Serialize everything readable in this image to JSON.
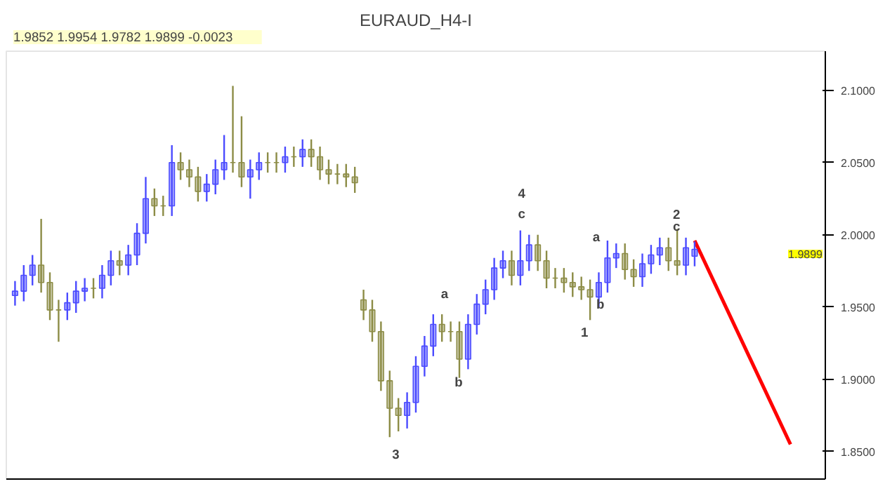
{
  "chart_data": {
    "type": "candlestick",
    "title": "EURAUD_H4-I",
    "categories": [
      null,
      null,
      null,
      null,
      null,
      null,
      null,
      null,
      null,
      null,
      null,
      null,
      null,
      null,
      null,
      null,
      null,
      null,
      null,
      null,
      null,
      null,
      null,
      null,
      null,
      null,
      null,
      null,
      null,
      null,
      null,
      null,
      null,
      null,
      null,
      null,
      null,
      null,
      null,
      null,
      null,
      null,
      null,
      null,
      null,
      null,
      null,
      null,
      null,
      null,
      null,
      null,
      null,
      null,
      null,
      null,
      null,
      null,
      null,
      null,
      null,
      null,
      null,
      null,
      null,
      null,
      null,
      null,
      null,
      null,
      null,
      null,
      null,
      null,
      null,
      null,
      null,
      null,
      null,
      null,
      null,
      null,
      null,
      null,
      null,
      null,
      null,
      null,
      null,
      null
    ],
    "ohlc": [
      [
        1.958,
        1.968,
        1.951,
        1.961
      ],
      [
        1.961,
        1.979,
        1.954,
        1.972
      ],
      [
        1.972,
        1.986,
        1.965,
        1.979
      ],
      [
        1.979,
        2.011,
        1.96,
        1.967
      ],
      [
        1.967,
        1.974,
        1.941,
        1.948
      ],
      [
        1.948,
        1.955,
        1.926,
        1.948
      ],
      [
        1.948,
        1.96,
        1.941,
        1.953
      ],
      [
        1.953,
        1.968,
        1.946,
        1.961
      ],
      [
        1.961,
        1.97,
        1.954,
        1.963
      ],
      [
        1.963,
        1.97,
        1.956,
        1.963
      ],
      [
        1.963,
        1.979,
        1.956,
        1.972
      ],
      [
        1.972,
        1.989,
        1.965,
        1.982
      ],
      [
        1.982,
        1.989,
        1.972,
        1.979
      ],
      [
        1.979,
        1.993,
        1.972,
        1.986
      ],
      [
        1.986,
        2.008,
        1.979,
        2.001
      ],
      [
        2.001,
        2.04,
        1.994,
        2.025
      ],
      [
        2.025,
        2.032,
        2.013,
        2.02
      ],
      [
        2.02,
        2.027,
        2.013,
        2.02
      ],
      [
        2.02,
        2.062,
        2.013,
        2.05
      ],
      [
        2.05,
        2.057,
        2.038,
        2.045
      ],
      [
        2.045,
        2.052,
        2.033,
        2.04
      ],
      [
        2.04,
        2.047,
        2.023,
        2.03
      ],
      [
        2.03,
        2.042,
        2.023,
        2.035
      ],
      [
        2.035,
        2.052,
        2.028,
        2.045
      ],
      [
        2.045,
        2.069,
        2.038,
        2.05
      ],
      [
        2.05,
        2.103,
        2.043,
        2.05
      ],
      [
        2.05,
        2.082,
        2.033,
        2.04
      ],
      [
        2.04,
        2.052,
        2.025,
        2.045
      ],
      [
        2.045,
        2.057,
        2.038,
        2.05
      ],
      [
        2.05,
        2.057,
        2.043,
        2.05
      ],
      [
        2.05,
        2.057,
        2.043,
        2.05
      ],
      [
        2.05,
        2.061,
        2.043,
        2.054
      ],
      [
        2.054,
        2.061,
        2.047,
        2.054
      ],
      [
        2.054,
        2.066,
        2.047,
        2.059
      ],
      [
        2.059,
        2.066,
        2.047,
        2.054
      ],
      [
        2.054,
        2.061,
        2.038,
        2.045
      ],
      [
        2.045,
        2.052,
        2.035,
        2.042
      ],
      [
        2.042,
        2.049,
        2.035,
        2.042
      ],
      [
        2.042,
        2.049,
        2.033,
        2.04
      ],
      [
        2.04,
        2.047,
        2.029,
        2.036
      ],
      [
        1.955,
        1.962,
        1.941,
        1.948
      ],
      [
        1.948,
        1.955,
        1.926,
        1.933
      ],
      [
        1.933,
        1.94,
        1.892,
        1.899
      ],
      [
        1.899,
        1.906,
        1.86,
        1.88
      ],
      [
        1.88,
        1.887,
        1.864,
        1.875
      ],
      [
        1.875,
        1.891,
        1.866,
        1.884
      ],
      [
        1.884,
        1.916,
        1.877,
        1.909
      ],
      [
        1.909,
        1.93,
        1.902,
        1.923
      ],
      [
        1.923,
        1.945,
        1.916,
        1.938
      ],
      [
        1.938,
        1.945,
        1.926,
        1.933
      ],
      [
        1.933,
        1.94,
        1.926,
        1.933
      ],
      [
        1.933,
        1.94,
        1.901,
        1.914
      ],
      [
        1.914,
        1.945,
        1.907,
        1.938
      ],
      [
        1.938,
        1.959,
        1.931,
        1.952
      ],
      [
        1.952,
        1.969,
        1.945,
        1.962
      ],
      [
        1.962,
        1.984,
        1.955,
        1.977
      ],
      [
        1.977,
        1.989,
        1.97,
        1.982
      ],
      [
        1.982,
        1.989,
        1.965,
        1.972
      ],
      [
        1.972,
        2.003,
        1.965,
        1.982
      ],
      [
        1.982,
        2.0,
        1.975,
        1.993
      ],
      [
        1.993,
        2.0,
        1.975,
        1.982
      ],
      [
        1.982,
        1.989,
        1.963,
        1.97
      ],
      [
        1.97,
        1.977,
        1.963,
        1.97
      ],
      [
        1.97,
        1.977,
        1.96,
        1.967
      ],
      [
        1.967,
        1.974,
        1.957,
        1.964
      ],
      [
        1.964,
        1.971,
        1.955,
        1.962
      ],
      [
        1.962,
        1.969,
        1.941,
        1.957
      ],
      [
        1.957,
        1.974,
        1.95,
        1.967
      ],
      [
        1.967,
        1.996,
        1.96,
        1.984
      ],
      [
        1.984,
        1.994,
        1.977,
        1.987
      ],
      [
        1.987,
        1.994,
        1.969,
        1.976
      ],
      [
        1.976,
        1.983,
        1.964,
        1.971
      ],
      [
        1.971,
        1.987,
        1.964,
        1.98
      ],
      [
        1.98,
        1.993,
        1.973,
        1.986
      ],
      [
        1.986,
        1.998,
        1.979,
        1.991
      ],
      [
        1.991,
        1.998,
        1.975,
        1.982
      ],
      [
        1.982,
        2.004,
        1.972,
        1.979
      ],
      [
        1.979,
        1.998,
        1.972,
        1.991
      ],
      [
        1.9852,
        1.9954,
        1.9782,
        1.9899
      ],
      null,
      null,
      null,
      null,
      null,
      null,
      null,
      null,
      null,
      null,
      null
    ],
    "colors": [
      "#4b4bff",
      "#4b4bff",
      "#4b4bff",
      "#8c8c46",
      "#8c8c46",
      "#8c8c46",
      "#4b4bff",
      "#4b4bff",
      "#4b4bff",
      "#8c8c46",
      "#4b4bff",
      "#4b4bff",
      "#8c8c46",
      "#4b4bff",
      "#4b4bff",
      "#4b4bff",
      "#8c8c46",
      "#8c8c46",
      "#4b4bff",
      "#8c8c46",
      "#8c8c46",
      "#8c8c46",
      "#4b4bff",
      "#4b4bff",
      "#4b4bff",
      "#8c8c46",
      "#8c8c46",
      "#4b4bff",
      "#4b4bff",
      "#8c8c46",
      "#8c8c46",
      "#4b4bff",
      "#8c8c46",
      "#4b4bff",
      "#8c8c46",
      "#8c8c46",
      "#8c8c46",
      "#8c8c46",
      "#8c8c46",
      "#8c8c46",
      "#8c8c46",
      "#8c8c46",
      "#8c8c46",
      "#8c8c46",
      "#8c8c46",
      "#4b4bff",
      "#4b4bff",
      "#4b4bff",
      "#4b4bff",
      "#8c8c46",
      "#8c8c46",
      "#8c8c46",
      "#4b4bff",
      "#4b4bff",
      "#4b4bff",
      "#4b4bff",
      "#4b4bff",
      "#8c8c46",
      "#4b4bff",
      "#4b4bff",
      "#8c8c46",
      "#8c8c46",
      "#8c8c46",
      "#8c8c46",
      "#8c8c46",
      "#8c8c46",
      "#8c8c46",
      "#4b4bff",
      "#4b4bff",
      "#4b4bff",
      "#8c8c46",
      "#8c8c46",
      "#4b4bff",
      "#4b4bff",
      "#4b4bff",
      "#8c8c46",
      "#8c8c46",
      "#4b4bff",
      "#4b4bff",
      null,
      null,
      null,
      null,
      null,
      null,
      null,
      null,
      null,
      null,
      null
    ],
    "series": [
      {
        "type": "line",
        "color": "#ff0000",
        "values": [
          null,
          null,
          null,
          null,
          null,
          null,
          null,
          null,
          null,
          null,
          null,
          null,
          null,
          null,
          null,
          null,
          null,
          null,
          null,
          null,
          null,
          null,
          null,
          null,
          null,
          null,
          null,
          null,
          null,
          null,
          null,
          null,
          null,
          null,
          null,
          null,
          null,
          null,
          null,
          null,
          null,
          null,
          null,
          null,
          null,
          null,
          null,
          null,
          null,
          null,
          null,
          null,
          null,
          null,
          null,
          null,
          null,
          null,
          null,
          null,
          null,
          null,
          null,
          null,
          null,
          null,
          null,
          null,
          null,
          null,
          null,
          null,
          null,
          null,
          null,
          null,
          null,
          null,
          1.996,
          null,
          null,
          null,
          null,
          null,
          null,
          null,
          null,
          null,
          null,
          1.855
        ]
      }
    ],
    "ylim": [
      1.831,
      2.127
    ],
    "yticks": [
      {
        "value": 1.85,
        "label": "1.8500"
      },
      {
        "value": 1.9,
        "label": "1.9000"
      },
      {
        "value": 1.95,
        "label": "1.9500"
      },
      {
        "value": 2.0,
        "label": "2.0000"
      },
      {
        "value": 2.05,
        "label": "2.0500"
      },
      {
        "value": 2.1,
        "label": "2.1000"
      }
    ],
    "tick_labels": "y",
    "grid": false,
    "annotations": [
      "1.9852   1.9954   1.9782   1.9899   -0.0023",
      "1.9899",
      "3",
      "a",
      "b",
      "4",
      "c",
      "1",
      "a",
      "b",
      "2",
      "c"
    ]
  }
}
